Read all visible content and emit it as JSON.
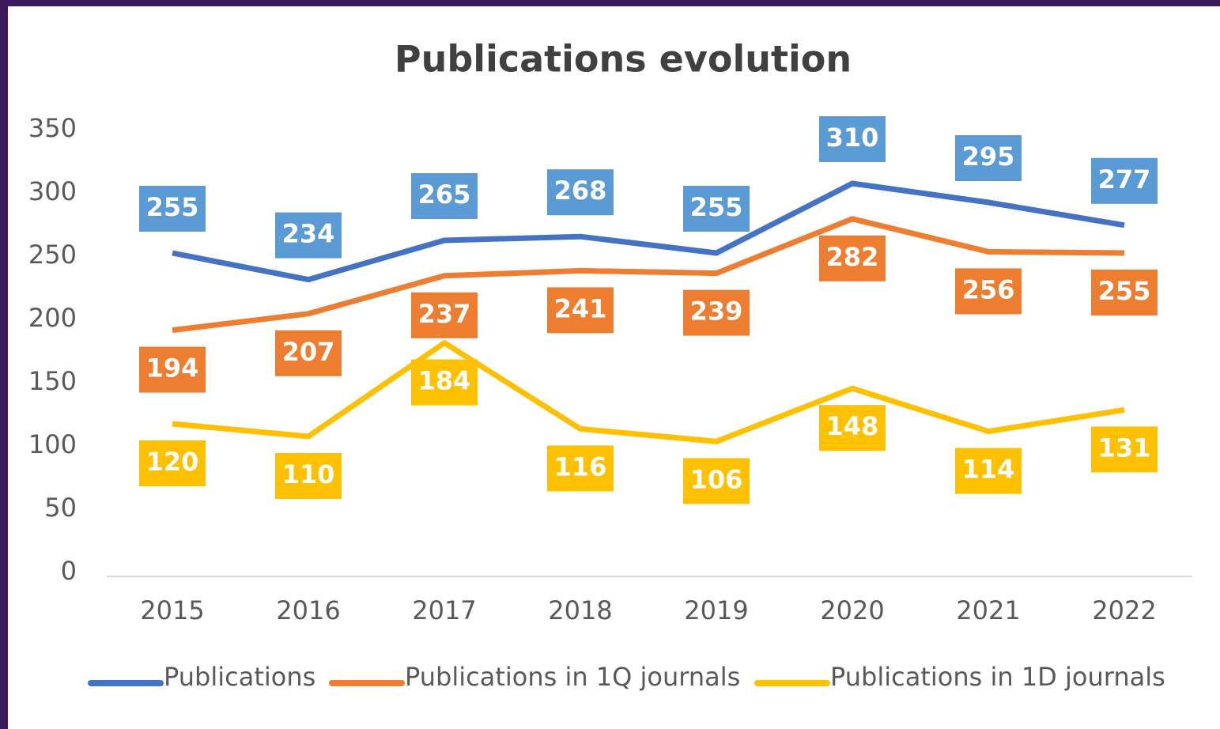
{
  "chart_data": {
    "type": "line",
    "title": "Publications evolution",
    "categories": [
      "2015",
      "2016",
      "2017",
      "2018",
      "2019",
      "2020",
      "2021",
      "2022"
    ],
    "series": [
      {
        "name": "Publications",
        "color": "#4472c4",
        "label_color": "#5b9bd5",
        "values": [
          255,
          234,
          265,
          268,
          255,
          310,
          295,
          277
        ]
      },
      {
        "name": "Publications in 1Q journals",
        "color": "#ed7d31",
        "label_color": "#ed7d31",
        "values": [
          194,
          207,
          237,
          241,
          239,
          282,
          256,
          255
        ]
      },
      {
        "name": "Publications in 1D journals",
        "color": "#ffc000",
        "label_color": "#ffc000",
        "values": [
          120,
          110,
          184,
          116,
          106,
          148,
          114,
          131
        ]
      }
    ],
    "ylim": [
      0,
      350
    ],
    "yticks": [
      0,
      50,
      100,
      150,
      200,
      250,
      300,
      350
    ],
    "grid": false,
    "legend": "bottom"
  }
}
